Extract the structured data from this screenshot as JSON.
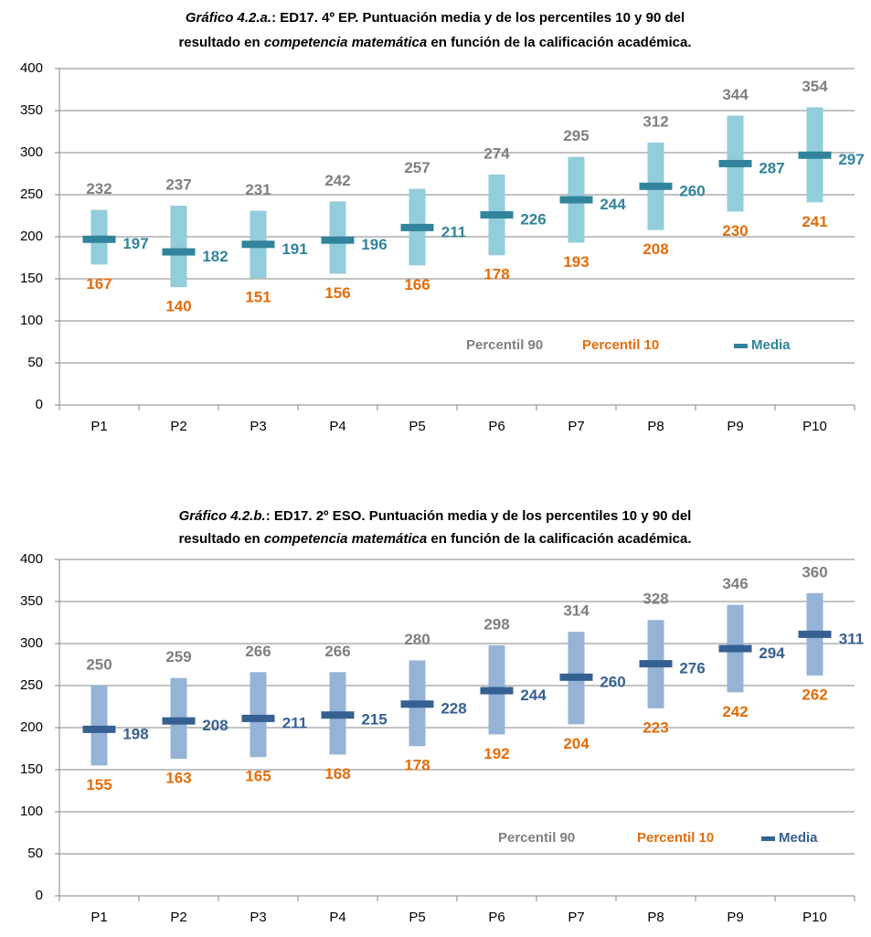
{
  "chart_data": [
    {
      "type": "range",
      "title": [
        [
          {
            "text": "Gráfico 4.2.a.",
            "italic": true
          },
          {
            "text": ": ED17. 4º EP.  Puntuación media y de los percentiles 10 y 90 del",
            "italic": false
          }
        ],
        [
          {
            "text": "resultado en ",
            "italic": false
          },
          {
            "text": "competencia matemática",
            "italic": true
          },
          {
            "text": " en función de la calificación académica.",
            "italic": false
          }
        ]
      ],
      "categories": [
        "P1",
        "P2",
        "P3",
        "P4",
        "P5",
        "P6",
        "P7",
        "P8",
        "P9",
        "P10"
      ],
      "series": [
        {
          "name": "Percentil 90",
          "color": "#7f7f7f",
          "values": [
            232,
            237,
            231,
            242,
            257,
            274,
            295,
            312,
            344,
            354
          ]
        },
        {
          "name": "Percentil 10",
          "color": "#e46c0a",
          "values": [
            167,
            140,
            151,
            156,
            166,
            178,
            193,
            208,
            230,
            241
          ]
        },
        {
          "name": "Media",
          "color": "#31849b",
          "values": [
            197,
            182,
            191,
            196,
            211,
            226,
            244,
            260,
            287,
            297
          ]
        }
      ],
      "bar_color": "#92cddc",
      "ylim": [
        0,
        400
      ],
      "yticks": [
        0,
        50,
        100,
        150,
        200,
        250,
        300,
        350,
        400
      ],
      "grid": true
    },
    {
      "type": "range",
      "title": [
        [
          {
            "text": "Gráfico 4.2.b.",
            "italic": true
          },
          {
            "text": ": ED17. 2º ESO.  Puntuación media y de los percentiles 10 y 90 del",
            "italic": false
          }
        ],
        [
          {
            "text": "resultado en ",
            "italic": false
          },
          {
            "text": "competencia matemática",
            "italic": true
          },
          {
            "text": " en función de la calificación académica.",
            "italic": false
          }
        ]
      ],
      "categories": [
        "P1",
        "P2",
        "P3",
        "P4",
        "P5",
        "P6",
        "P7",
        "P8",
        "P9",
        "P10"
      ],
      "series": [
        {
          "name": "Percentil 90",
          "color": "#7f7f7f",
          "values": [
            250,
            259,
            266,
            266,
            280,
            298,
            314,
            328,
            346,
            360
          ]
        },
        {
          "name": "Percentil 10",
          "color": "#e46c0a",
          "values": [
            155,
            163,
            165,
            168,
            178,
            192,
            204,
            223,
            242,
            262
          ]
        },
        {
          "name": "Media",
          "color": "#366092",
          "values": [
            198,
            208,
            211,
            215,
            228,
            244,
            260,
            276,
            294,
            311
          ]
        }
      ],
      "bar_color": "#95b3d7",
      "ylim": [
        0,
        400
      ],
      "yticks": [
        0,
        50,
        100,
        150,
        200,
        250,
        300,
        350,
        400
      ],
      "grid": true
    }
  ]
}
